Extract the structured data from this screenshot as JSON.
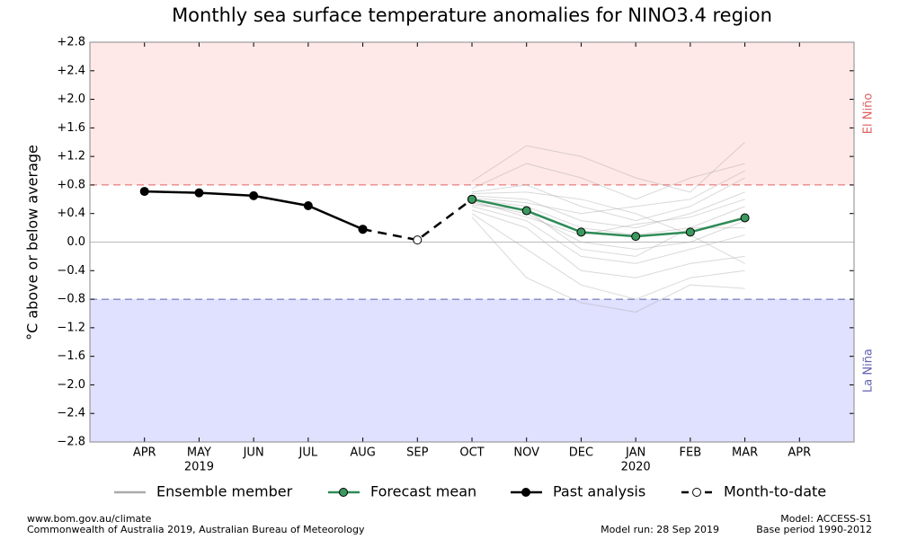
{
  "chart_data": {
    "type": "line",
    "title": "Monthly sea surface temperature anomalies for NINO3.4 region",
    "ylabel": "°C above or below average",
    "categories": [
      "APR",
      "MAY",
      "JUN",
      "JUL",
      "AUG",
      "SEP",
      "OCT",
      "NOV",
      "DEC",
      "JAN",
      "FEB",
      "MAR",
      "APR"
    ],
    "year_labels": [
      null,
      "2019",
      null,
      null,
      null,
      null,
      null,
      null,
      null,
      "2020",
      null,
      null,
      null
    ],
    "ylim": [
      -2.8,
      2.8
    ],
    "yticks": [
      {
        "value": -2.8,
        "label": "−2.8"
      },
      {
        "value": -2.4,
        "label": "−2.4"
      },
      {
        "value": -2.0,
        "label": "−2.0"
      },
      {
        "value": -1.6,
        "label": "−1.6"
      },
      {
        "value": -1.2,
        "label": "−1.2"
      },
      {
        "value": -0.8,
        "label": "−0.8"
      },
      {
        "value": -0.4,
        "label": "−0.4"
      },
      {
        "value": 0,
        "label": "0.0"
      },
      {
        "value": 0.4,
        "label": "+0.4"
      },
      {
        "value": 0.8,
        "label": "+0.8"
      },
      {
        "value": 1.2,
        "label": "+1.2"
      },
      {
        "value": 1.6,
        "label": "+1.6"
      },
      {
        "value": 2.0,
        "label": "+2.0"
      },
      {
        "value": 2.4,
        "label": "+2.4"
      },
      {
        "value": 2.8,
        "label": "+2.8"
      }
    ],
    "thresholds": [
      {
        "label": "El Niño",
        "value": 0.8,
        "side": "above",
        "fill": "#ffe8e8",
        "color": "#e06060"
      },
      {
        "label": "La Niña",
        "value": -0.8,
        "side": "below",
        "fill": "#e0e0ff",
        "color": "#6060b0"
      }
    ],
    "series": [
      {
        "name": "Ensemble member",
        "color": "#aaaaaa",
        "members": [
          [
            null,
            null,
            null,
            null,
            null,
            null,
            0.85,
            1.35,
            1.2,
            0.9,
            0.7,
            1.4
          ],
          [
            null,
            null,
            null,
            null,
            null,
            null,
            0.75,
            1.1,
            0.9,
            0.6,
            0.9,
            1.1
          ],
          [
            null,
            null,
            null,
            null,
            null,
            null,
            0.7,
            0.8,
            0.5,
            0.3,
            0.5,
            0.9
          ],
          [
            null,
            null,
            null,
            null,
            null,
            null,
            0.65,
            0.6,
            0.3,
            0.2,
            0.4,
            0.7
          ],
          [
            null,
            null,
            null,
            null,
            null,
            null,
            0.6,
            0.5,
            0.2,
            0.1,
            0.2,
            0.5
          ],
          [
            null,
            null,
            null,
            null,
            null,
            null,
            0.55,
            0.4,
            0.0,
            -0.1,
            0.0,
            0.3
          ],
          [
            null,
            null,
            null,
            null,
            null,
            null,
            0.5,
            0.3,
            -0.2,
            -0.3,
            -0.1,
            0.1
          ],
          [
            null,
            null,
            null,
            null,
            null,
            null,
            0.45,
            0.2,
            -0.4,
            -0.5,
            -0.3,
            -0.2
          ],
          [
            null,
            null,
            null,
            null,
            null,
            null,
            0.4,
            -0.1,
            -0.6,
            -0.8,
            -0.5,
            -0.4
          ],
          [
            null,
            null,
            null,
            null,
            null,
            null,
            0.35,
            -0.5,
            -0.85,
            -0.98,
            -0.6,
            -0.65
          ],
          [
            null,
            null,
            null,
            null,
            null,
            null,
            0.62,
            0.55,
            0.4,
            0.5,
            0.6,
            1.0
          ],
          [
            null,
            null,
            null,
            null,
            null,
            null,
            0.58,
            0.35,
            0.1,
            0.25,
            0.35,
            0.6
          ],
          [
            null,
            null,
            null,
            null,
            null,
            null,
            0.52,
            0.45,
            -0.1,
            -0.2,
            0.2,
            0.2
          ],
          [
            null,
            null,
            null,
            null,
            null,
            null,
            0.68,
            0.7,
            0.6,
            0.4,
            0.1,
            -0.3
          ]
        ]
      },
      {
        "name": "Forecast mean",
        "color": "#2e8b57",
        "marker": "#3a9a5f",
        "values": [
          null,
          null,
          null,
          null,
          null,
          null,
          0.6,
          0.44,
          0.14,
          0.08,
          0.14,
          0.34,
          null
        ]
      },
      {
        "name": "Past analysis",
        "color": "#000000",
        "marker": "#000000",
        "values": [
          0.71,
          0.69,
          0.65,
          0.51,
          0.18,
          null,
          null,
          null,
          null,
          null,
          null,
          null,
          null
        ]
      },
      {
        "name": "Month-to-date",
        "color": "#000000",
        "marker": "#ffffff",
        "dashed": true,
        "values": [
          null,
          null,
          null,
          null,
          0.18,
          0.03,
          0.6,
          null,
          null,
          null,
          null,
          null,
          null
        ]
      }
    ]
  },
  "footer": {
    "site": "www.bom.gov.au/climate",
    "copyright": "Commonwealth of Australia 2019, Australian Bureau of Meteorology",
    "model_run": "Model run: 28 Sep 2019",
    "model": "Model: ACCESS-S1",
    "base_period": "Base period 1990-2012"
  }
}
